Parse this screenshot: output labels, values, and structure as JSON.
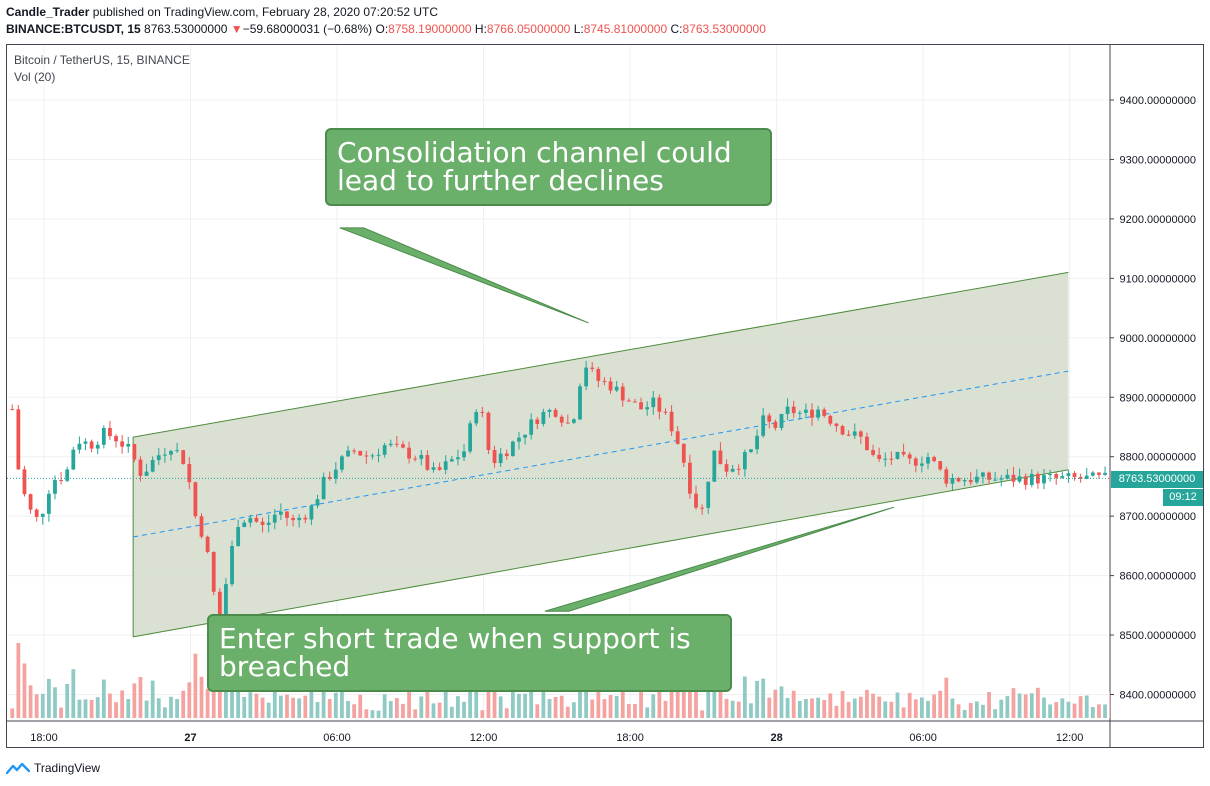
{
  "header": {
    "author": "Candle_Trader",
    "published": "published on TradingView.com, February 28, 2020 07:20:52 UTC",
    "symbol": "BINANCE:BTCUSDT, 15",
    "last": "8763.53000000",
    "change_arrow": "▼",
    "change": "−59.68000031 (−0.68%)",
    "o_label": "O:",
    "o_value": "8758.19000000",
    "h_label": "H:",
    "h_value": "8766.05000000",
    "l_label": "L:",
    "l_value": "8745.81000000",
    "c_label": "C:",
    "c_value": "8763.53000000"
  },
  "legend": {
    "title": "Bitcoin / TetherUS, 15, BINANCE",
    "volume": "Vol (20)"
  },
  "price_tag": "8763.53000000",
  "countdown": "09:12",
  "callouts": {
    "top": "Consolidation channel could lead to further declines",
    "bottom": "Enter short trade when support is breached"
  },
  "footer": {
    "brand": "TradingView"
  },
  "colors": {
    "up": "#26a69a",
    "down": "#ef5350",
    "up_volume": "#8fcac4",
    "down_volume": "#f5a3a1",
    "channel_fill": "#d4dccb",
    "channel_line": "#4e8b3c",
    "midline": "#2196f3",
    "callout": "#6aaf6a"
  },
  "chart_data": {
    "type": "candlestick",
    "symbol": "Bitcoin / TetherUS, 15, BINANCE",
    "ylim": [
      8340,
      9500
    ],
    "y_ticks": [
      "9400.00000000",
      "9300.00000000",
      "9200.00000000",
      "9100.00000000",
      "9000.00000000",
      "8900.00000000",
      "8800.00000000",
      "8700.00000000",
      "8600.00000000",
      "8500.00000000",
      "8400.00000000"
    ],
    "y_tick_values": [
      9400,
      9300,
      9200,
      9100,
      9000,
      8900,
      8800,
      8700,
      8600,
      8500,
      8400
    ],
    "x_ticks": [
      "18:00",
      "27",
      "06:00",
      "12:00",
      "18:00",
      "28",
      "06:00",
      "12:00"
    ],
    "x_tick_hours": [
      0,
      6,
      12,
      18,
      24,
      30,
      36,
      42
    ],
    "bold_x_ticks": [
      "27",
      "28"
    ],
    "x_range_hours": [
      -1.3,
      43.5
    ],
    "last_price": 8763.53,
    "channel": {
      "start_hour": 3.65,
      "end_hour": 41.95,
      "upper": [
        8833,
        9110
      ],
      "lower": [
        8497,
        8778
      ],
      "mid": [
        8665,
        8944
      ]
    },
    "callout_pointers": [
      {
        "from_hour": 12.6,
        "from_price": 9185,
        "to_hour": 22.3,
        "to_price": 9025
      },
      {
        "from_hour": 21.0,
        "from_price": 8540,
        "to_hour": 34.8,
        "to_price": 8715
      }
    ],
    "series_spec": {
      "interval_minutes": 15,
      "start_hour": -1.3,
      "candles": 194,
      "note_waypoints": "approximate close path read from chart"
    },
    "close_waypoints": [
      [
        -1.3,
        8880
      ],
      [
        -1.0,
        8760
      ],
      [
        -0.6,
        8710
      ],
      [
        -0.2,
        8690
      ],
      [
        0.3,
        8760
      ],
      [
        0.9,
        8770
      ],
      [
        1.3,
        8830
      ],
      [
        1.9,
        8820
      ],
      [
        2.5,
        8840
      ],
      [
        3.0,
        8830
      ],
      [
        3.5,
        8810
      ],
      [
        4.0,
        8770
      ],
      [
        4.6,
        8800
      ],
      [
        5.2,
        8820
      ],
      [
        5.8,
        8790
      ],
      [
        6.2,
        8700
      ],
      [
        6.6,
        8660
      ],
      [
        6.9,
        8580
      ],
      [
        7.2,
        8520
      ],
      [
        7.5,
        8600
      ],
      [
        7.9,
        8690
      ],
      [
        8.4,
        8700
      ],
      [
        9.0,
        8680
      ],
      [
        9.6,
        8710
      ],
      [
        10.2,
        8690
      ],
      [
        10.9,
        8710
      ],
      [
        11.5,
        8760
      ],
      [
        12.1,
        8790
      ],
      [
        12.7,
        8810
      ],
      [
        13.3,
        8800
      ],
      [
        14.0,
        8820
      ],
      [
        14.6,
        8810
      ],
      [
        15.3,
        8800
      ],
      [
        16.0,
        8770
      ],
      [
        16.6,
        8790
      ],
      [
        17.2,
        8810
      ],
      [
        17.8,
        8900
      ],
      [
        18.3,
        8790
      ],
      [
        18.9,
        8810
      ],
      [
        19.6,
        8840
      ],
      [
        20.3,
        8870
      ],
      [
        20.9,
        8880
      ],
      [
        21.6,
        8850
      ],
      [
        22.1,
        8960
      ],
      [
        22.6,
        8930
      ],
      [
        23.2,
        8920
      ],
      [
        23.8,
        8900
      ],
      [
        24.4,
        8880
      ],
      [
        25.0,
        8890
      ],
      [
        25.6,
        8860
      ],
      [
        26.1,
        8810
      ],
      [
        26.5,
        8740
      ],
      [
        26.9,
        8700
      ],
      [
        27.4,
        8810
      ],
      [
        27.9,
        8780
      ],
      [
        28.5,
        8790
      ],
      [
        29.0,
        8810
      ],
      [
        29.4,
        8860
      ],
      [
        30.0,
        8850
      ],
      [
        30.5,
        8880
      ],
      [
        31.1,
        8870
      ],
      [
        31.7,
        8880
      ],
      [
        32.3,
        8860
      ],
      [
        32.9,
        8840
      ],
      [
        33.5,
        8830
      ],
      [
        34.1,
        8790
      ],
      [
        34.8,
        8800
      ],
      [
        35.4,
        8790
      ],
      [
        36.2,
        8800
      ],
      [
        36.7,
        8775
      ],
      [
        36.9,
        8763
      ]
    ]
  }
}
